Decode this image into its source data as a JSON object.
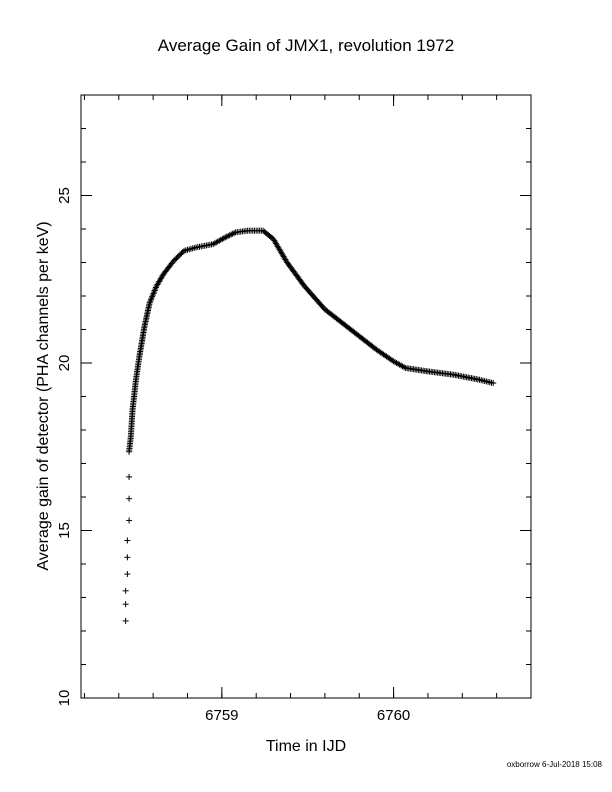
{
  "chart_data": {
    "type": "scatter",
    "marker": "+",
    "title": "Average Gain of JMX1, revolution 1972",
    "xlabel": "Time in IJD",
    "ylabel": "Average gain of detector (PHA channels per keV)",
    "xlim": [
      6758.18,
      6760.8
    ],
    "ylim": [
      10,
      28
    ],
    "xticks": [
      6759,
      6760
    ],
    "yticks": [
      10,
      15,
      20,
      25
    ],
    "x_minor_step": 0.2,
    "y_minor_step": 1,
    "grid": false,
    "series": [
      {
        "points": [
          [
            6758.44,
            12.3
          ],
          [
            6758.44,
            12.8
          ],
          [
            6758.44,
            13.2
          ],
          [
            6758.45,
            13.7
          ],
          [
            6758.45,
            14.2
          ],
          [
            6758.45,
            14.7
          ],
          [
            6758.46,
            15.3
          ],
          [
            6758.46,
            15.95
          ],
          [
            6758.46,
            16.6
          ],
          [
            6758.46,
            17.35
          ],
          [
            6758.47,
            17.8
          ],
          [
            6758.48,
            18.6
          ],
          [
            6758.5,
            19.5
          ],
          [
            6758.52,
            20.2
          ],
          [
            6758.55,
            21.1
          ],
          [
            6758.58,
            21.8
          ],
          [
            6758.62,
            22.3
          ],
          [
            6758.66,
            22.65
          ],
          [
            6758.72,
            23.05
          ],
          [
            6758.78,
            23.35
          ],
          [
            6758.85,
            23.45
          ],
          [
            6758.95,
            23.55
          ],
          [
            6759.02,
            23.75
          ],
          [
            6759.08,
            23.9
          ],
          [
            6759.15,
            23.95
          ],
          [
            6759.24,
            23.95
          ],
          [
            6759.3,
            23.7
          ],
          [
            6759.38,
            23.0
          ],
          [
            6759.48,
            22.3
          ],
          [
            6759.6,
            21.6
          ],
          [
            6759.75,
            21.0
          ],
          [
            6759.9,
            20.4
          ],
          [
            6760.0,
            20.05
          ],
          [
            6760.07,
            19.85
          ],
          [
            6760.2,
            19.75
          ],
          [
            6760.35,
            19.65
          ],
          [
            6760.5,
            19.5
          ],
          [
            6760.58,
            19.4
          ]
        ]
      }
    ]
  },
  "footer": {
    "stamp": "oxborrow  6-Jul-2018 15:08"
  }
}
